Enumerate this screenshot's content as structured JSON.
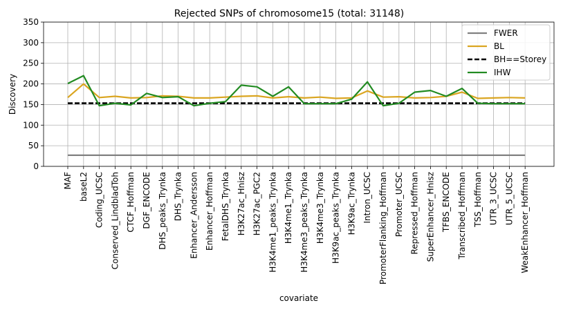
{
  "chart_data": {
    "type": "line",
    "title": "Rejected SNPs of chromosome15 (total: 31148)",
    "xlabel": "covariate",
    "ylabel": "Discovery",
    "ylim": [
      0,
      350
    ],
    "yticks": [
      0,
      50,
      100,
      150,
      200,
      250,
      300,
      350
    ],
    "grid": true,
    "legend_position": "top-right",
    "categories": [
      "MAF",
      "baseL2",
      "Coding_UCSC",
      "Conserved_LindbladToh",
      "CTCF_Hoffman",
      "DGF_ENCODE",
      "DHS_peaks_Trynka",
      "DHS_Trynka",
      "Enhancer_Andersson",
      "Enhancer_Hoffman",
      "FetalDHS_Trynka",
      "H3K27ac_Hnisz",
      "H3K27ac_PGC2",
      "H3K4me1_peaks_Trynka",
      "H3K4me1_Trynka",
      "H3K4me3_peaks_Trynka",
      "H3K4me3_Trynka",
      "H3K9ac_peaks_Trynka",
      "H3K9ac_Trynka",
      "Intron_UCSC",
      "PromoterFlanking_Hoffman",
      "Promoter_UCSC",
      "Repressed_Hoffman",
      "SuperEnhancer_Hnisz",
      "TFBS_ENCODE",
      "Transcribed_Hoffman",
      "TSS_Hoffman",
      "UTR_3_UCSC",
      "UTR_5_UCSC",
      "WeakEnhancer_Hoffman"
    ],
    "series": [
      {
        "name": "FWER",
        "color": "#808080",
        "dash": "solid",
        "values": [
          27,
          27,
          27,
          27,
          27,
          27,
          27,
          27,
          27,
          27,
          27,
          27,
          27,
          27,
          27,
          27,
          27,
          27,
          27,
          27,
          27,
          27,
          27,
          27,
          27,
          27,
          27,
          27,
          27,
          27
        ]
      },
      {
        "name": "BL",
        "color": "#daa520",
        "dash": "solid",
        "values": [
          167,
          200,
          167,
          170,
          166,
          167,
          171,
          170,
          166,
          166,
          168,
          170,
          171,
          166,
          169,
          166,
          168,
          165,
          166,
          183,
          168,
          169,
          166,
          167,
          170,
          180,
          165,
          166,
          167,
          166
        ]
      },
      {
        "name": "BH==Storey",
        "color": "#000000",
        "dash": "dashed",
        "values": [
          153,
          153,
          153,
          153,
          153,
          153,
          153,
          153,
          153,
          153,
          153,
          153,
          153,
          153,
          153,
          153,
          153,
          153,
          153,
          153,
          153,
          153,
          153,
          153,
          153,
          153,
          153,
          153,
          153,
          153
        ]
      },
      {
        "name": "IHW",
        "color": "#228b22",
        "dash": "solid",
        "values": [
          201,
          220,
          147,
          153,
          149,
          177,
          167,
          169,
          147,
          153,
          157,
          197,
          193,
          170,
          193,
          152,
          152,
          152,
          163,
          205,
          147,
          153,
          180,
          184,
          170,
          189,
          153,
          152,
          152,
          152
        ]
      }
    ]
  }
}
